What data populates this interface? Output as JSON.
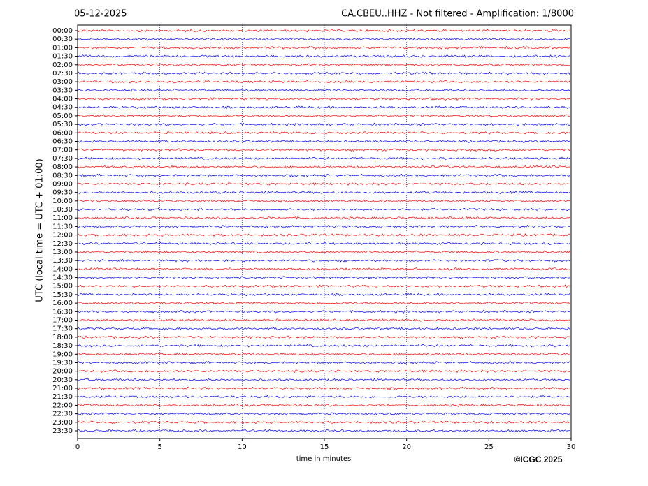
{
  "chart_data": {
    "type": "helicorder",
    "title_left": "05-12-2025",
    "title_right": "CA.CBEU..HHZ - Not filtered - Amplification: 1/8000",
    "ylabel": "UTC (local time = UTC + 01:00)",
    "xlabel": "time in minutes",
    "copyright": "©ICGC 2025",
    "xlim": [
      0,
      30
    ],
    "xticks": [
      0,
      5,
      10,
      15,
      20,
      25,
      30
    ],
    "grid": true,
    "colors": [
      "#ff0000",
      "#0000ff"
    ],
    "rows": [
      "00:00",
      "00:30",
      "01:00",
      "01:30",
      "02:00",
      "02:30",
      "03:00",
      "03:30",
      "04:00",
      "04:30",
      "05:00",
      "05:30",
      "06:00",
      "06:30",
      "07:00",
      "07:30",
      "08:00",
      "08:30",
      "09:00",
      "09:30",
      "10:00",
      "10:30",
      "11:00",
      "11:30",
      "12:00",
      "12:30",
      "13:00",
      "13:30",
      "14:00",
      "14:30",
      "15:00",
      "15:30",
      "16:00",
      "16:30",
      "17:00",
      "17:30",
      "18:00",
      "18:30",
      "19:00",
      "19:30",
      "20:00",
      "20:30",
      "21:00",
      "21:30",
      "22:00",
      "22:30",
      "23:00",
      "23:30"
    ]
  }
}
